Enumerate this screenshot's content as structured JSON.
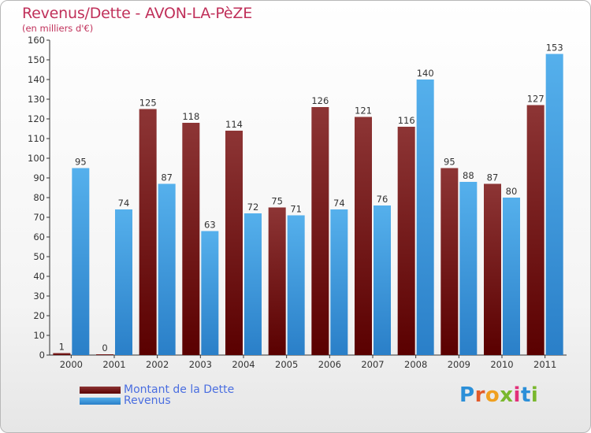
{
  "title": "Revenus/Dette - AVON-LA-PèZE",
  "subtitle": "(en milliers d'€)",
  "colors": {
    "dette": "#8b1d1d",
    "revenus": "#3e9be0"
  },
  "legend": {
    "dette": "Montant de la Dette",
    "revenus": "Revenus"
  },
  "logo": {
    "text": "Proxiti",
    "letters": [
      "P",
      "r",
      "o",
      "x",
      "i",
      "t",
      "i"
    ],
    "colors": [
      "#2b8fd8",
      "#e25a2a",
      "#f0a020",
      "#7ab82e",
      "#e2307a",
      "#2b8fd8",
      "#7ab82e"
    ]
  },
  "chart_data": {
    "type": "bar",
    "categories": [
      "2000",
      "2001",
      "2002",
      "2003",
      "2004",
      "2005",
      "2006",
      "2007",
      "2008",
      "2009",
      "2010",
      "2011"
    ],
    "series": [
      {
        "name": "Montant de la Dette",
        "values": [
          1,
          0,
          125,
          118,
          114,
          75,
          126,
          121,
          116,
          95,
          87,
          127
        ]
      },
      {
        "name": "Revenus",
        "values": [
          95,
          74,
          87,
          63,
          72,
          71,
          74,
          76,
          140,
          88,
          80,
          153
        ]
      }
    ],
    "ylim": [
      0,
      160
    ],
    "yticks": [
      0,
      10,
      20,
      30,
      40,
      50,
      60,
      70,
      80,
      90,
      100,
      110,
      120,
      130,
      140,
      150,
      160
    ],
    "grid": false,
    "legend_position": "bottom-left"
  }
}
